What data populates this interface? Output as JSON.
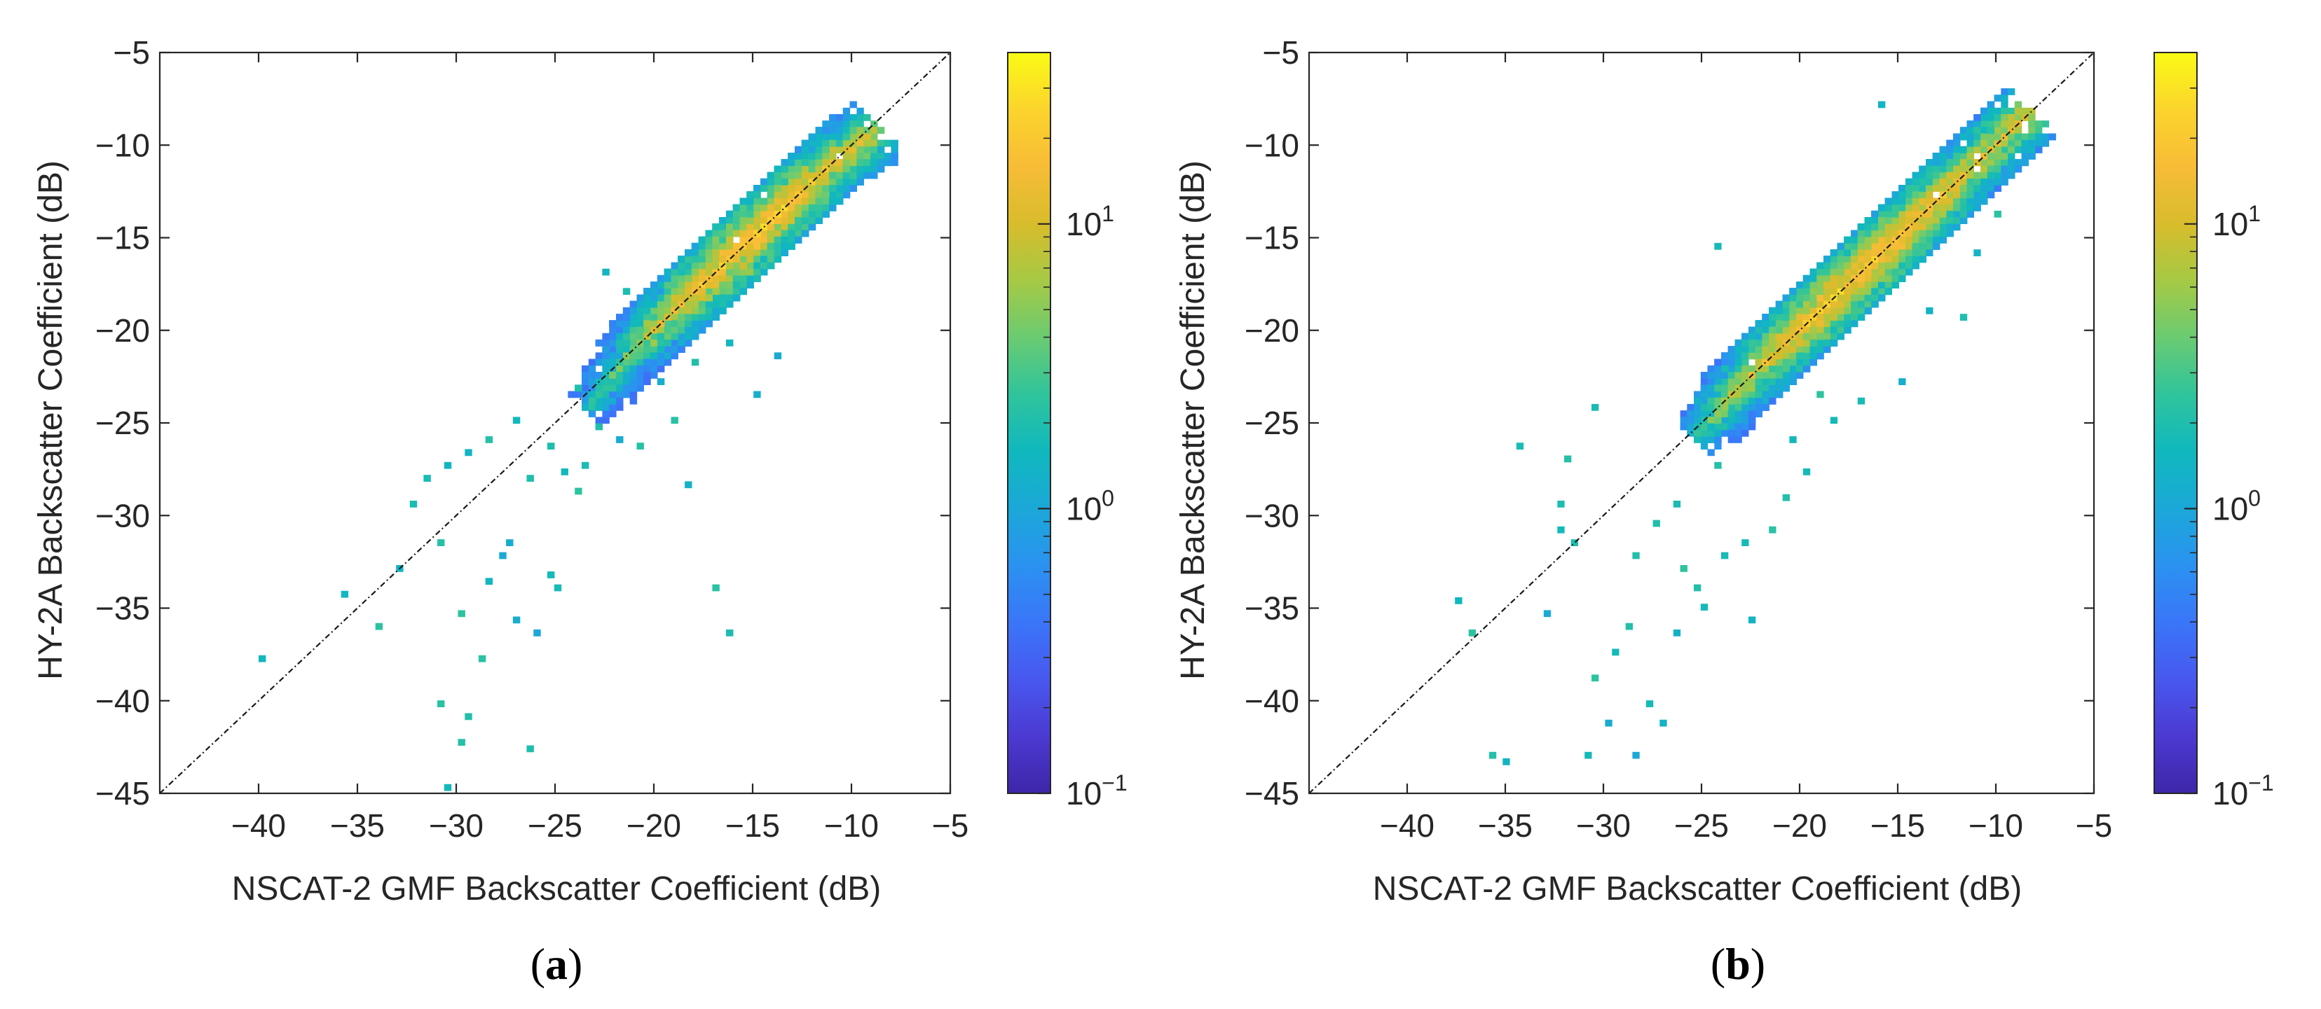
{
  "panels": [
    {
      "label": "(a)",
      "label_letter": "a",
      "xlabel": "NSCAT-2 GMF Backscatter Coefficient (dB)",
      "ylabel": "HY-2A Backscatter Coefficient (dB)"
    },
    {
      "label": "(b)",
      "label_letter": "b",
      "xlabel": "NSCAT-2 GMF Backscatter Coefficient (dB)",
      "ylabel": "HY-2A Backscatter Coefficient (dB)"
    }
  ],
  "colorbar_ticks": [
    {
      "base": "10",
      "exp": "1",
      "value": 10
    },
    {
      "base": "10",
      "exp": "0",
      "value": 1
    },
    {
      "base": "10",
      "exp": "−1",
      "value": 0.1
    }
  ],
  "colormap": [
    "#3e26a8",
    "#4b3ad2",
    "#4858ef",
    "#3a76f9",
    "#2b92f0",
    "#1ba8d8",
    "#10b8bd",
    "#2fc49c",
    "#6acb72",
    "#a6c945",
    "#d8bc2b",
    "#f8bc37",
    "#fcd42d",
    "#f9fb14"
  ],
  "chart_data": [
    {
      "type": "heatmap",
      "title": "",
      "xlabel": "NSCAT-2 GMF Backscatter Coefficient (dB)",
      "ylabel": "HY-2A Backscatter Coefficient (dB)",
      "xlim": [
        -45,
        -5
      ],
      "ylim": [
        -45,
        -5
      ],
      "xticks": [
        -40,
        -35,
        -30,
        -25,
        -20,
        -15,
        -10,
        -5
      ],
      "yticks": [
        -5,
        -10,
        -15,
        -20,
        -25,
        -30,
        -35,
        -40,
        -45
      ],
      "reference_line": "y = x",
      "color_scale": "log",
      "color_range": [
        0.1,
        40
      ],
      "colorbar_ticks": [
        0.1,
        1,
        10
      ],
      "grid": false,
      "core": [
        {
          "x": -23,
          "y": -24,
          "count": 2
        },
        {
          "x": -21,
          "y": -21,
          "count": 5
        },
        {
          "x": -19,
          "y": -19,
          "count": 12
        },
        {
          "x": -17,
          "y": -17,
          "count": 20
        },
        {
          "x": -15,
          "y": -15,
          "count": 25
        },
        {
          "x": -13,
          "y": -13,
          "count": 22
        },
        {
          "x": -11,
          "y": -11,
          "count": 15
        },
        {
          "x": -9,
          "y": -9.5,
          "count": 10
        }
      ],
      "outliers": [
        [
          -40,
          -38
        ],
        [
          -36,
          -34.5
        ],
        [
          -34,
          -36.2
        ],
        [
          -33,
          -33
        ],
        [
          -32.5,
          -29.5
        ],
        [
          -31,
          -31.8
        ],
        [
          -31,
          -40.2
        ],
        [
          -30.5,
          -44.8
        ],
        [
          -30,
          -42.3
        ],
        [
          -30,
          -35.5
        ],
        [
          -29.5,
          -41.2
        ],
        [
          -29,
          -38
        ],
        [
          -28.5,
          -33.8
        ],
        [
          -28,
          -32.3
        ],
        [
          -27.5,
          -31.5
        ],
        [
          -27,
          -35.8
        ],
        [
          -26.5,
          -42.7
        ],
        [
          -26,
          -36.5
        ],
        [
          -25.5,
          -33.4
        ],
        [
          -25,
          -34.2
        ],
        [
          -24.8,
          -27.8
        ],
        [
          -26.5,
          -28.3
        ],
        [
          -24,
          -29
        ],
        [
          -31.5,
          -28.2
        ],
        [
          -30.5,
          -27.5
        ],
        [
          -29.5,
          -26.8
        ],
        [
          -28.5,
          -26.2
        ],
        [
          -27,
          -25
        ],
        [
          -17,
          -34
        ],
        [
          -16.5,
          -36.5
        ],
        [
          -18,
          -22
        ],
        [
          -16.5,
          -21
        ],
        [
          -15,
          -23.5
        ],
        [
          -19,
          -25
        ],
        [
          -21,
          -26.5
        ],
        [
          -23,
          -25.5
        ],
        [
          -24,
          -23.2
        ],
        [
          -22.5,
          -17.2
        ],
        [
          -21.5,
          -18
        ],
        [
          -20,
          -23
        ],
        [
          -18.5,
          -28.5
        ],
        [
          -25.5,
          -26.5
        ],
        [
          -23.5,
          -27.5
        ],
        [
          -22,
          -26
        ],
        [
          -14,
          -21.5
        ]
      ]
    },
    {
      "type": "heatmap",
      "title": "",
      "xlabel": "NSCAT-2 GMF Backscatter Coefficient (dB)",
      "ylabel": "HY-2A Backscatter Coefficient (dB)",
      "xlim": [
        -45,
        -5
      ],
      "ylim": [
        -45,
        -5
      ],
      "xticks": [
        -40,
        -35,
        -30,
        -25,
        -20,
        -15,
        -10,
        -5
      ],
      "yticks": [
        -5,
        -10,
        -15,
        -20,
        -25,
        -30,
        -35,
        -40,
        -45
      ],
      "reference_line": "y = x",
      "color_scale": "log",
      "color_range": [
        0.1,
        40
      ],
      "colorbar_ticks": [
        0.1,
        1,
        10
      ],
      "grid": false,
      "core": [
        {
          "x": -25,
          "y": -25.5,
          "count": 3
        },
        {
          "x": -23,
          "y": -23,
          "count": 8
        },
        {
          "x": -21,
          "y": -21,
          "count": 15
        },
        {
          "x": -19,
          "y": -19,
          "count": 22
        },
        {
          "x": -17,
          "y": -17,
          "count": 25
        },
        {
          "x": -15,
          "y": -15,
          "count": 22
        },
        {
          "x": -13,
          "y": -13,
          "count": 18
        },
        {
          "x": -11,
          "y": -11,
          "count": 12
        },
        {
          "x": -8.5,
          "y": -8.5,
          "count": 12
        }
      ],
      "outliers": [
        [
          -37.5,
          -34.7
        ],
        [
          -37,
          -36.5
        ],
        [
          -36,
          -43.2
        ],
        [
          -35,
          -43.6
        ],
        [
          -34.5,
          -26.5
        ],
        [
          -33,
          -35.5
        ],
        [
          -32.5,
          -29.7
        ],
        [
          -32.5,
          -30.8
        ],
        [
          -31,
          -43.2
        ],
        [
          -30.5,
          -39
        ],
        [
          -30,
          -41.5
        ],
        [
          -29.5,
          -37.5
        ],
        [
          -29,
          -36.2
        ],
        [
          -28.5,
          -43.2
        ],
        [
          -28,
          -40.5
        ],
        [
          -27,
          -41.5
        ],
        [
          -26.5,
          -36.5
        ],
        [
          -26,
          -33.2
        ],
        [
          -25.5,
          -34
        ],
        [
          -25,
          -35
        ],
        [
          -24,
          -32.3
        ],
        [
          -23,
          -31.5
        ],
        [
          -22.5,
          -35.8
        ],
        [
          -21.5,
          -30.8
        ],
        [
          -21,
          -29.2
        ],
        [
          -20,
          -27.8
        ],
        [
          -30.5,
          -24.5
        ],
        [
          -32,
          -27.2
        ],
        [
          -31.5,
          -31.5
        ],
        [
          -16,
          -8
        ],
        [
          -24.5,
          -15.8
        ],
        [
          -18.5,
          -25
        ],
        [
          -17,
          -24
        ],
        [
          -15,
          -22.8
        ],
        [
          -12,
          -19.5
        ],
        [
          -11,
          -16
        ],
        [
          -19,
          -23.7
        ],
        [
          -20.5,
          -26
        ],
        [
          -27.5,
          -30.5
        ],
        [
          -28.5,
          -32.5
        ],
        [
          -26.5,
          -29.5
        ],
        [
          -24.5,
          -27.5
        ],
        [
          -10,
          -14
        ],
        [
          -13.5,
          -19
        ]
      ]
    }
  ]
}
